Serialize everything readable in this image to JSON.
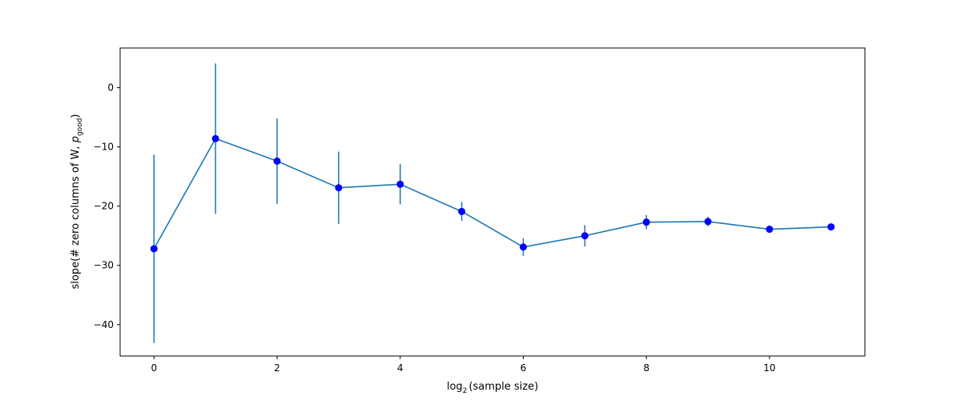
{
  "chart_data": {
    "type": "line",
    "xlabel": {
      "base": "log",
      "sub": "2",
      "rest": "(sample size)"
    },
    "ylabel": {
      "main": "slope(# zero columns of W, ",
      "var": "p",
      "sub": "good",
      "close": ")"
    },
    "xlim": [
      -0.55,
      11.55
    ],
    "ylim": [
      -45.3,
      6.7
    ],
    "x_ticks": [
      0,
      2,
      4,
      6,
      8,
      10
    ],
    "y_ticks": [
      0,
      -10,
      -20,
      -30,
      -40
    ],
    "line_color": "#1f77b4",
    "marker_color": "#0000ff",
    "grid": false,
    "series": [
      {
        "x": [
          0,
          1,
          2,
          3,
          4,
          5,
          6,
          7,
          8,
          9,
          10,
          11
        ],
        "y": [
          -27.2,
          -8.6,
          -12.4,
          -16.9,
          -16.3,
          -20.9,
          -26.9,
          -25.0,
          -22.7,
          -22.6,
          -23.9,
          -23.5
        ],
        "err": [
          15.9,
          12.7,
          7.2,
          6.1,
          3.4,
          1.6,
          1.5,
          1.8,
          1.2,
          0.8,
          0.4,
          0.5
        ]
      }
    ]
  }
}
